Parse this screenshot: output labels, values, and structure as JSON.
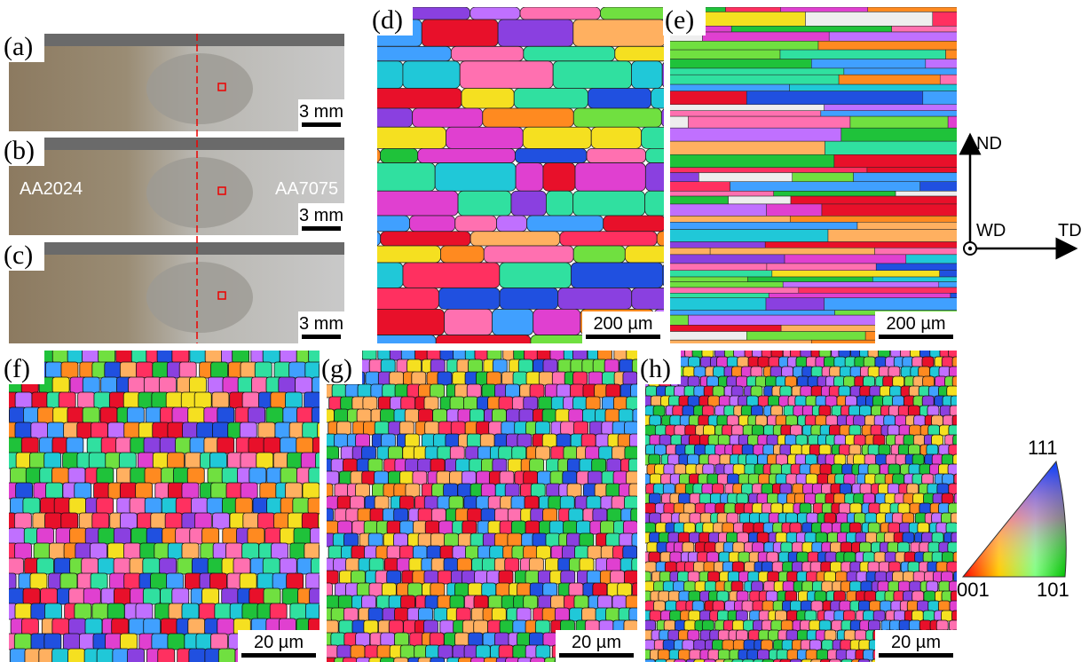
{
  "panels": [
    {
      "label": "(a)",
      "scale_bar": "3 mm"
    },
    {
      "label": "(b)",
      "scale_bar": "3 mm",
      "annotations": [
        "AA2024",
        "AA7075"
      ]
    },
    {
      "label": "(c)",
      "scale_bar": "3 mm"
    },
    {
      "label": "(d)",
      "scale_bar": "200 µm"
    },
    {
      "label": "(e)",
      "scale_bar": "200 µm"
    },
    {
      "label": "(f)",
      "scale_bar": "20 µm"
    },
    {
      "label": "(g)",
      "scale_bar": "20 µm"
    },
    {
      "label": "(h)",
      "scale_bar": "20 µm"
    }
  ],
  "axes": {
    "vertical": "ND",
    "out_of_plane": "WD",
    "horizontal": "TD"
  },
  "ipf_legend": {
    "top": "111",
    "bottom_left": "001",
    "bottom_right": "101"
  }
}
